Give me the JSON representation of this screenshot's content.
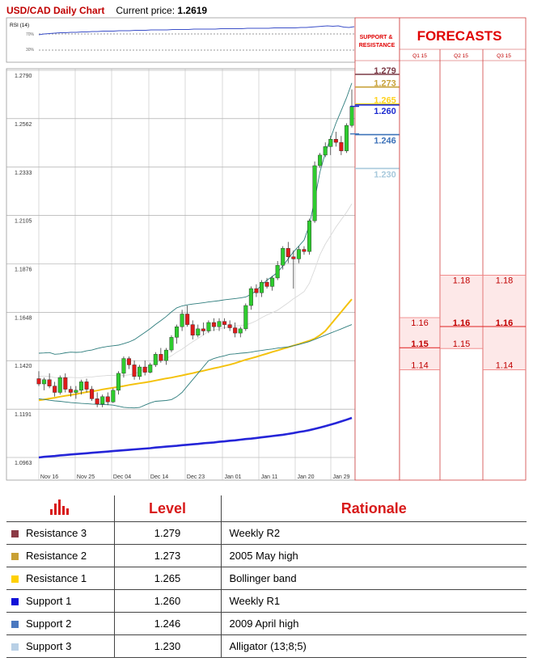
{
  "header": {
    "pair": "USD/CAD Daily Chart",
    "price_label": "Current price:",
    "price_value": "1.2619"
  },
  "rsi_panel": {
    "label": "RSI (14)",
    "tick_upper": "70%",
    "tick_lower": "30%"
  },
  "chart_data": {
    "type": "candlestick",
    "title": "USD/CAD Daily Chart",
    "y_ticks": [
      "1.2790",
      "1.2562",
      "1.2333",
      "1.2105",
      "1.1876",
      "1.1648",
      "1.1420",
      "1.1191",
      "1.0963"
    ],
    "x_ticks": [
      "Nov 16",
      "Nov 25",
      "Dec 04",
      "Dec 14",
      "Dec 23",
      "Jan 01",
      "Jan 11",
      "Jan 20",
      "Jan 29"
    ],
    "ylim": [
      1.0963,
      1.279
    ],
    "candles": [
      [
        1.1335,
        1.137,
        1.13,
        1.131
      ],
      [
        1.131,
        1.134,
        1.128,
        1.133
      ],
      [
        1.133,
        1.136,
        1.129,
        1.13
      ],
      [
        1.13,
        1.132,
        1.125,
        1.127
      ],
      [
        1.127,
        1.135,
        1.126,
        1.134
      ],
      [
        1.134,
        1.136,
        1.127,
        1.1285
      ],
      [
        1.1285,
        1.13,
        1.125,
        1.127
      ],
      [
        1.127,
        1.13,
        1.124,
        1.128
      ],
      [
        1.128,
        1.133,
        1.126,
        1.132
      ],
      [
        1.132,
        1.1335,
        1.127,
        1.1285
      ],
      [
        1.1285,
        1.13,
        1.123,
        1.124
      ],
      [
        1.124,
        1.127,
        1.12,
        1.1215
      ],
      [
        1.1215,
        1.126,
        1.12,
        1.125
      ],
      [
        1.125,
        1.127,
        1.121,
        1.1225
      ],
      [
        1.1225,
        1.129,
        1.122,
        1.128
      ],
      [
        1.128,
        1.137,
        1.126,
        1.136
      ],
      [
        1.136,
        1.144,
        1.134,
        1.143
      ],
      [
        1.143,
        1.144,
        1.138,
        1.14
      ],
      [
        1.14,
        1.142,
        1.133,
        1.1345
      ],
      [
        1.1345,
        1.14,
        1.133,
        1.139
      ],
      [
        1.139,
        1.142,
        1.135,
        1.1365
      ],
      [
        1.1365,
        1.141,
        1.136,
        1.14
      ],
      [
        1.14,
        1.146,
        1.139,
        1.145
      ],
      [
        1.145,
        1.148,
        1.141,
        1.142
      ],
      [
        1.142,
        1.148,
        1.14,
        1.147
      ],
      [
        1.147,
        1.154,
        1.146,
        1.153
      ],
      [
        1.153,
        1.159,
        1.15,
        1.158
      ],
      [
        1.158,
        1.166,
        1.156,
        1.164
      ],
      [
        1.164,
        1.168,
        1.158,
        1.159
      ],
      [
        1.159,
        1.161,
        1.152,
        1.154
      ],
      [
        1.154,
        1.159,
        1.153,
        1.157
      ],
      [
        1.157,
        1.16,
        1.154,
        1.156
      ],
      [
        1.156,
        1.161,
        1.155,
        1.16
      ],
      [
        1.16,
        1.162,
        1.156,
        1.158
      ],
      [
        1.158,
        1.162,
        1.156,
        1.1605
      ],
      [
        1.1605,
        1.162,
        1.157,
        1.159
      ],
      [
        1.159,
        1.161,
        1.156,
        1.1575
      ],
      [
        1.1575,
        1.16,
        1.153,
        1.155
      ],
      [
        1.155,
        1.158,
        1.153,
        1.157
      ],
      [
        1.157,
        1.169,
        1.156,
        1.168
      ],
      [
        1.168,
        1.177,
        1.166,
        1.176
      ],
      [
        1.176,
        1.178,
        1.172,
        1.174
      ],
      [
        1.174,
        1.18,
        1.172,
        1.179
      ],
      [
        1.179,
        1.181,
        1.176,
        1.177
      ],
      [
        1.177,
        1.182,
        1.175,
        1.181
      ],
      [
        1.181,
        1.189,
        1.18,
        1.187
      ],
      [
        1.187,
        1.196,
        1.185,
        1.195
      ],
      [
        1.195,
        1.198,
        1.188,
        1.191
      ],
      [
        1.191,
        1.194,
        1.176,
        1.19
      ],
      [
        1.19,
        1.196,
        1.188,
        1.1945
      ],
      [
        1.1945,
        1.196,
        1.192,
        1.1935
      ],
      [
        1.1935,
        1.209,
        1.192,
        1.208
      ],
      [
        1.208,
        1.236,
        1.207,
        1.234
      ],
      [
        1.234,
        1.24,
        1.233,
        1.239
      ],
      [
        1.239,
        1.245,
        1.238,
        1.243
      ],
      [
        1.243,
        1.248,
        1.239,
        1.2465
      ],
      [
        1.2465,
        1.25,
        1.243,
        1.245
      ],
      [
        1.245,
        1.248,
        1.239,
        1.241
      ],
      [
        1.241,
        1.254,
        1.24,
        1.253
      ],
      [
        1.253,
        1.27,
        1.252,
        1.2619
      ]
    ],
    "upper_band": [
      1.1455,
      1.1456,
      1.1458,
      1.145,
      1.1452,
      1.1457,
      1.146,
      1.1459,
      1.146,
      1.1466,
      1.147,
      1.1477,
      1.1483,
      1.1487,
      1.149,
      1.1493,
      1.15,
      1.1508,
      1.1519,
      1.1536,
      1.1553,
      1.1571,
      1.1591,
      1.1609,
      1.1628,
      1.165,
      1.1669,
      1.1678,
      1.1683,
      1.1687,
      1.169,
      1.1693,
      1.1697,
      1.17,
      1.1703,
      1.1707,
      1.171,
      1.1713,
      1.1716,
      1.172,
      1.1733,
      1.175,
      1.1777,
      1.18,
      1.1817,
      1.1837,
      1.1867,
      1.19,
      1.1933,
      1.196,
      1.1989,
      1.206,
      1.218,
      1.231,
      1.24,
      1.247,
      1.254,
      1.26,
      1.266,
      1.273
    ],
    "lower_band": [
      1.124,
      1.1237,
      1.1233,
      1.123,
      1.1228,
      1.1225,
      1.1222,
      1.122,
      1.1218,
      1.1217,
      1.1215,
      1.1214,
      1.1213,
      1.1212,
      1.121,
      1.1205,
      1.12,
      1.1198,
      1.1197,
      1.1199,
      1.121,
      1.122,
      1.1228,
      1.123,
      1.1232,
      1.1236,
      1.125,
      1.127,
      1.13,
      1.133,
      1.136,
      1.139,
      1.142,
      1.143,
      1.1437,
      1.1443,
      1.145,
      1.1452,
      1.1455,
      1.1457,
      1.146,
      1.1465,
      1.1468,
      1.1472,
      1.1475,
      1.1479,
      1.1482,
      1.1485,
      1.149,
      1.1496,
      1.1503,
      1.151,
      1.152,
      1.153,
      1.154,
      1.155,
      1.156,
      1.157,
      1.158,
      1.159
    ],
    "middle_band": [
      1.1347,
      1.1346,
      1.1345,
      1.134,
      1.134,
      1.1341,
      1.1341,
      1.134,
      1.1339,
      1.1342,
      1.1343,
      1.1346,
      1.1348,
      1.135,
      1.135,
      1.1349,
      1.135,
      1.1353,
      1.1358,
      1.1368,
      1.1382,
      1.1396,
      1.141,
      1.142,
      1.143,
      1.1443,
      1.146,
      1.1474,
      1.1492,
      1.1509,
      1.1525,
      1.1541,
      1.1559,
      1.1565,
      1.157,
      1.1575,
      1.158,
      1.1583,
      1.1586,
      1.1589,
      1.1597,
      1.1608,
      1.1623,
      1.1636,
      1.1646,
      1.1658,
      1.1675,
      1.1693,
      1.1712,
      1.1728,
      1.1746,
      1.1785,
      1.185,
      1.192,
      1.197,
      1.201,
      1.205,
      1.2085,
      1.212,
      1.216
    ],
    "ma_yellow": [
      1.1233,
      1.1237,
      1.1241,
      1.1245,
      1.125,
      1.1254,
      1.1258,
      1.1262,
      1.1267,
      1.1271,
      1.1275,
      1.1279,
      1.1284,
      1.1288,
      1.1292,
      1.1296,
      1.13,
      1.1305,
      1.1309,
      1.1313,
      1.1317,
      1.1321,
      1.1326,
      1.1331,
      1.1336,
      1.134,
      1.1345,
      1.135,
      1.1356,
      1.1361,
      1.1367,
      1.1372,
      1.1378,
      1.1384,
      1.1389,
      1.1395,
      1.1401,
      1.1408,
      1.1416,
      1.1424,
      1.1431,
      1.1438,
      1.1446,
      1.1453,
      1.1461,
      1.1468,
      1.1476,
      1.1483,
      1.1491,
      1.1498,
      1.1506,
      1.1514,
      1.1524,
      1.154,
      1.156,
      1.159,
      1.162,
      1.165,
      1.168,
      1.171
    ],
    "ma_blue": [
      1.0963,
      1.0966,
      1.0968,
      1.097,
      1.0973,
      1.0975,
      1.0977,
      1.0979,
      1.0981,
      1.0983,
      1.0985,
      1.0987,
      1.0989,
      1.0991,
      1.0993,
      1.0995,
      1.0997,
      1.0999,
      1.1001,
      1.1003,
      1.1005,
      1.1007,
      1.101,
      1.1012,
      1.1014,
      1.1016,
      1.1018,
      1.1021,
      1.1023,
      1.1025,
      1.1027,
      1.103,
      1.1032,
      1.1034,
      1.1037,
      1.1039,
      1.1042,
      1.1044,
      1.1047,
      1.105,
      1.1052,
      1.1055,
      1.1058,
      1.1061,
      1.1064,
      1.1067,
      1.107,
      1.1074,
      1.1078,
      1.1083,
      1.1087,
      1.1092,
      1.1098,
      1.1104,
      1.1111,
      1.1118,
      1.1125,
      1.1133,
      1.1141,
      1.115
    ],
    "support_resistance": [
      {
        "name": "Resistance 3",
        "label": "1.279",
        "value": 1.279,
        "color": "#7b3a46"
      },
      {
        "name": "Resistance 2",
        "label": "1.273",
        "value": 1.273,
        "color": "#c8a23a"
      },
      {
        "name": "Resistance 1",
        "label": "1.265",
        "value": 1.265,
        "color": "#ffd21f"
      },
      {
        "name": "Support 1",
        "label": "1.260",
        "value": 1.26,
        "color": "#1d2bd0"
      },
      {
        "name": "Support 2",
        "label": "1.246",
        "value": 1.246,
        "color": "#3d72b9"
      },
      {
        "name": "Support 3",
        "label": "1.230",
        "value": 1.23,
        "color": "#a8c9dc"
      }
    ],
    "rsi_values": [
      68,
      70,
      71,
      72,
      73,
      73,
      74,
      74,
      75,
      75,
      76,
      76,
      77,
      77,
      77,
      78,
      78,
      78,
      79,
      79,
      79,
      80,
      80,
      80,
      80,
      81,
      81,
      81,
      81,
      82,
      82,
      82,
      82,
      82,
      83,
      83,
      83,
      83,
      83,
      84,
      84,
      84,
      84,
      84,
      85,
      85,
      85,
      85,
      85,
      86,
      86,
      87,
      88,
      89,
      90,
      89,
      90,
      87,
      86,
      88
    ]
  },
  "sr_panel": {
    "header": "SUPPORT & RESISTANCE"
  },
  "forecasts": {
    "title": "FORECASTS",
    "columns": [
      "Q1 15",
      "Q2 15",
      "Q3 15"
    ],
    "q1": {
      "upper": "1.16",
      "mid": "1.15",
      "lower": "1.14",
      "upper_val": 1.16,
      "mid_val": 1.15,
      "lower_val": 1.14
    },
    "q2": {
      "upper": "1.18",
      "mid": "1.16",
      "lower": "1.15",
      "upper_val": 1.18,
      "mid_val": 1.16,
      "lower_val": 1.15
    },
    "q3": {
      "upper": "1.18",
      "mid": "1.16",
      "lower": "1.14",
      "upper_val": 1.18,
      "mid_val": 1.16,
      "lower_val": 1.14
    }
  },
  "levels_table": {
    "headers": {
      "level": "Level",
      "rationale": "Rationale"
    },
    "rows": [
      {
        "name": "Resistance 3",
        "level": "1.279",
        "rationale": "Weekly R2",
        "color": "#8b3a45"
      },
      {
        "name": "Resistance 2",
        "level": "1.273",
        "rationale": "2005 May high",
        "color": "#c8a034"
      },
      {
        "name": "Resistance 1",
        "level": "1.265",
        "rationale": "Bollinger band",
        "color": "#ffd000"
      },
      {
        "name": "Support 1",
        "level": "1.260",
        "rationale": "Weekly R1",
        "color": "#1010d8"
      },
      {
        "name": "Support 2",
        "level": "1.246",
        "rationale": "2009 April high",
        "color": "#4a78c0"
      },
      {
        "name": "Support 3",
        "level": "1.230",
        "rationale": "Alligator (13;8;5)",
        "color": "#b9d0e6"
      }
    ]
  }
}
